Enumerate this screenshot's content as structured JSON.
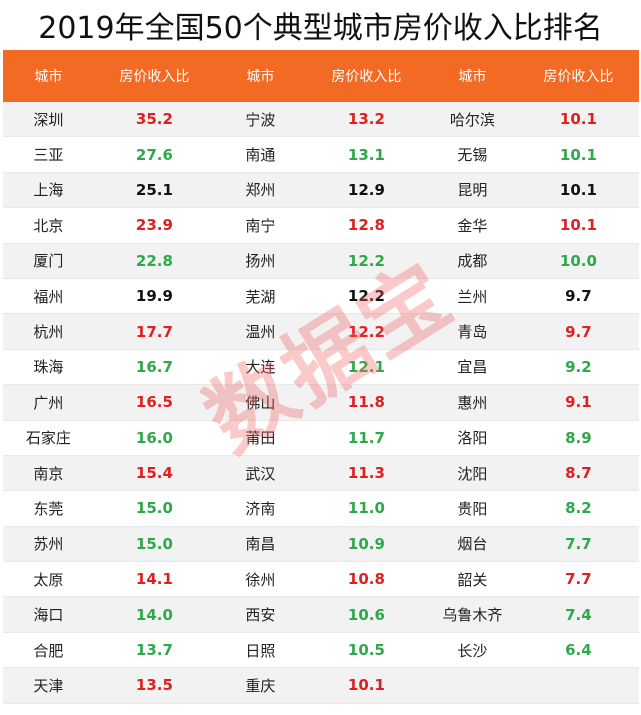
{
  "title": "2019年全国50个典型城市房价收入比排名",
  "headers": [
    "城市",
    "房价收入比",
    "城市",
    "房价收入比",
    "城市",
    "房价收入比"
  ],
  "watermark": "数据宝",
  "rows": [
    [
      [
        "深圳",
        "35.2",
        "red"
      ],
      [
        "宁波",
        "13.2",
        "red"
      ],
      [
        "哈尔滨",
        "10.1",
        "red"
      ]
    ],
    [
      [
        "三亚",
        "27.6",
        "green"
      ],
      [
        "南通",
        "13.1",
        "green"
      ],
      [
        "无锡",
        "10.1",
        "green"
      ]
    ],
    [
      [
        "上海",
        "25.1",
        "black"
      ],
      [
        "郑州",
        "12.9",
        "black"
      ],
      [
        "昆明",
        "10.1",
        "black"
      ]
    ],
    [
      [
        "北京",
        "23.9",
        "red"
      ],
      [
        "南宁",
        "12.8",
        "red"
      ],
      [
        "金华",
        "10.1",
        "red"
      ]
    ],
    [
      [
        "厦门",
        "22.8",
        "green"
      ],
      [
        "扬州",
        "12.2",
        "green"
      ],
      [
        "成都",
        "10.0",
        "green"
      ]
    ],
    [
      [
        "福州",
        "19.9",
        "black"
      ],
      [
        "芜湖",
        "12.2",
        "black"
      ],
      [
        "兰州",
        "9.7",
        "black"
      ]
    ],
    [
      [
        "杭州",
        "17.7",
        "red"
      ],
      [
        "温州",
        "12.2",
        "red"
      ],
      [
        "青岛",
        "9.7",
        "red"
      ]
    ],
    [
      [
        "珠海",
        "16.7",
        "green"
      ],
      [
        "大连",
        "12.1",
        "green"
      ],
      [
        "宜昌",
        "9.2",
        "green"
      ]
    ],
    [
      [
        "广州",
        "16.5",
        "red"
      ],
      [
        "佛山",
        "11.8",
        "red"
      ],
      [
        "惠州",
        "9.1",
        "red"
      ]
    ],
    [
      [
        "石家庄",
        "16.0",
        "green"
      ],
      [
        "莆田",
        "11.7",
        "green"
      ],
      [
        "洛阳",
        "8.9",
        "green"
      ]
    ],
    [
      [
        "南京",
        "15.4",
        "red"
      ],
      [
        "武汉",
        "11.3",
        "red"
      ],
      [
        "沈阳",
        "8.7",
        "red"
      ]
    ],
    [
      [
        "东莞",
        "15.0",
        "green"
      ],
      [
        "济南",
        "11.0",
        "green"
      ],
      [
        "贵阳",
        "8.2",
        "green"
      ]
    ],
    [
      [
        "苏州",
        "15.0",
        "green"
      ],
      [
        "南昌",
        "10.9",
        "green"
      ],
      [
        "烟台",
        "7.7",
        "green"
      ]
    ],
    [
      [
        "太原",
        "14.1",
        "red"
      ],
      [
        "徐州",
        "10.8",
        "red"
      ],
      [
        "韶关",
        "7.7",
        "red"
      ]
    ],
    [
      [
        "海口",
        "14.0",
        "green"
      ],
      [
        "西安",
        "10.6",
        "green"
      ],
      [
        "乌鲁木齐",
        "7.4",
        "green"
      ]
    ],
    [
      [
        "合肥",
        "13.7",
        "green"
      ],
      [
        "日照",
        "10.5",
        "green"
      ],
      [
        "长沙",
        "6.4",
        "green"
      ]
    ],
    [
      [
        "天津",
        "13.5",
        "red"
      ],
      [
        "重庆",
        "10.1",
        "red"
      ],
      [
        "",
        "",
        " "
      ]
    ]
  ]
}
